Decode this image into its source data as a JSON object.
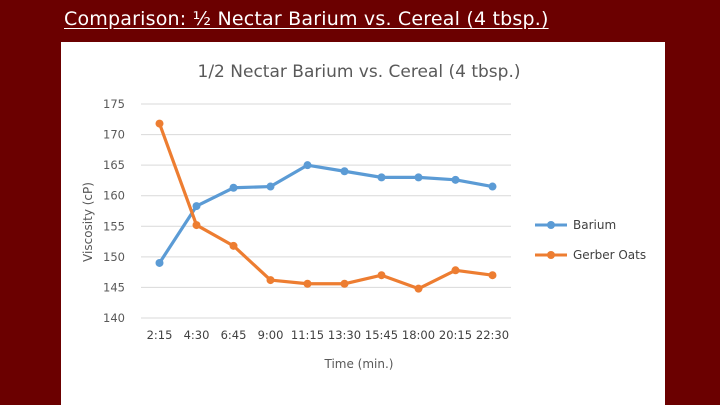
{
  "slide": {
    "title": "Comparison: ½ Nectar Barium vs. Cereal (4 tbsp.)"
  },
  "chart_data": {
    "type": "line",
    "title": "1/2 Nectar Barium vs. Cereal (4 tbsp.)",
    "xlabel": "Time (min.)",
    "ylabel": "Viscosity (cP)",
    "categories": [
      "2:15",
      "4:30",
      "6:45",
      "9:00",
      "11:15",
      "13:30",
      "15:45",
      "18:00",
      "20:15",
      "22:30"
    ],
    "ylim": [
      140,
      175
    ],
    "yticks": [
      140,
      145,
      150,
      155,
      160,
      165,
      170,
      175
    ],
    "grid": true,
    "legend_position": "right",
    "series": [
      {
        "name": "Barium",
        "color": "#5b9bd5",
        "values": [
          149,
          158.3,
          161.3,
          161.5,
          165,
          164,
          163,
          163,
          162.6,
          161.5
        ]
      },
      {
        "name": "Gerber Oats",
        "color": "#ed7d31",
        "values": [
          171.8,
          155.2,
          151.8,
          146.2,
          145.6,
          145.6,
          147,
          144.8,
          147.8,
          147
        ]
      }
    ]
  }
}
